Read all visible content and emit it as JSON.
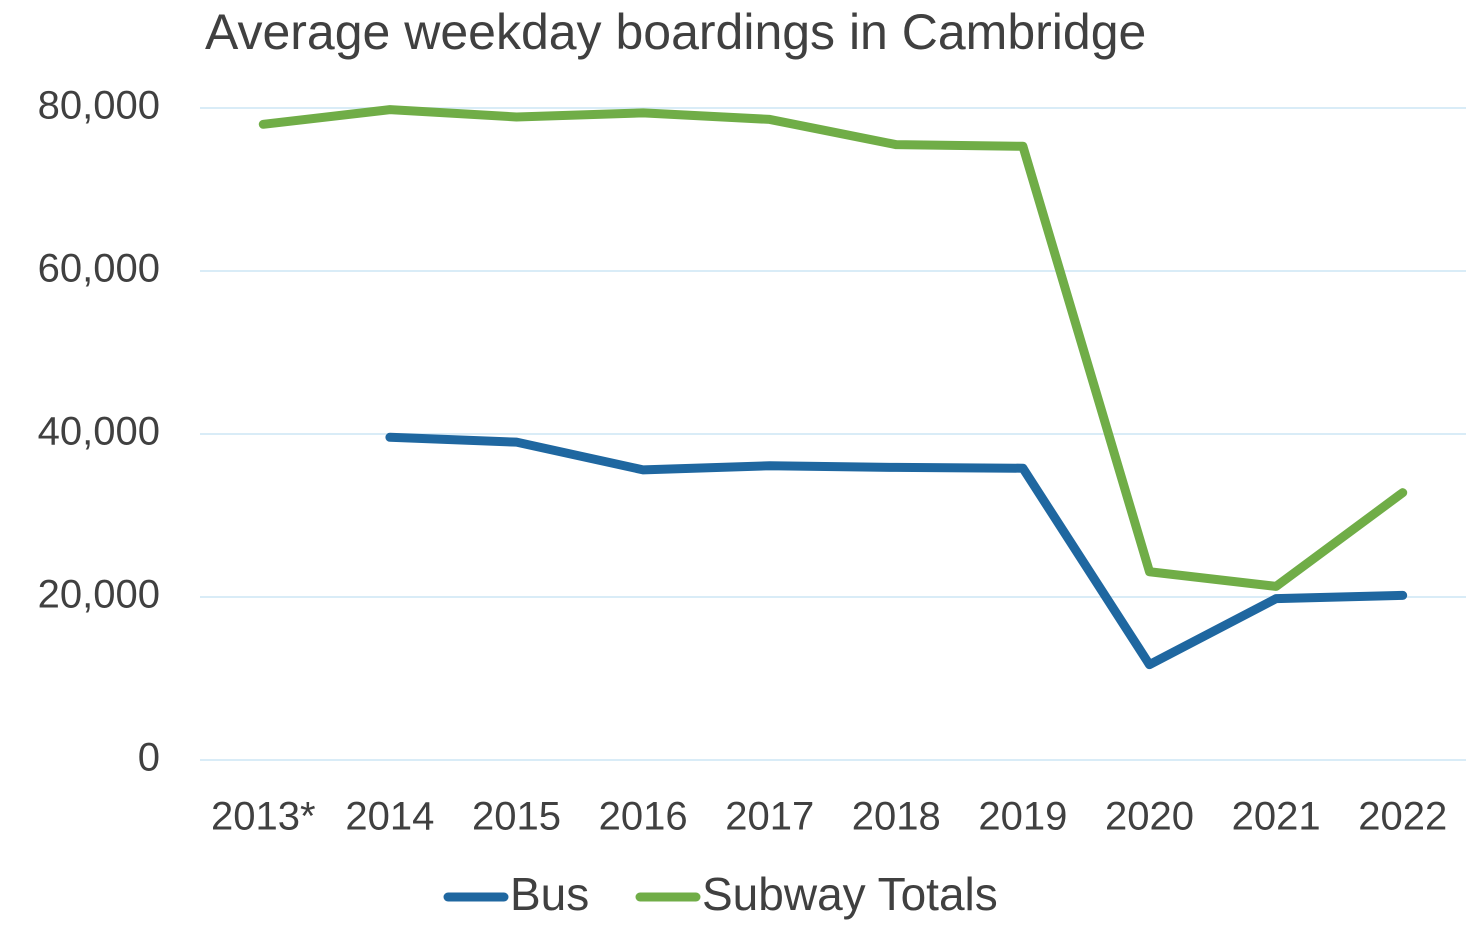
{
  "chart_data": {
    "type": "line",
    "title": "Average weekday boardings in Cambridge",
    "categories": [
      "2013*",
      "2014",
      "2015",
      "2016",
      "2017",
      "2018",
      "2019",
      "2020",
      "2021",
      "2022"
    ],
    "series": [
      {
        "name": "Bus",
        "color": "#1f67a0",
        "values": [
          null,
          39600,
          39000,
          35600,
          36100,
          35900,
          35800,
          11700,
          19800,
          20200
        ]
      },
      {
        "name": "Subway Totals",
        "color": "#70ad47",
        "values": [
          78000,
          79800,
          78900,
          79400,
          78600,
          75500,
          75300,
          23100,
          21300,
          32800
        ]
      }
    ],
    "ylim": [
      0,
      80000
    ],
    "yticks": [
      0,
      {
        "value": 20000,
        "label": "20,000"
      },
      {
        "value": 40000,
        "label": "40,000"
      },
      {
        "value": 60000,
        "label": "60,000"
      },
      {
        "value": 80000,
        "label": "80,000"
      }
    ],
    "grid": true,
    "legend": "bottom"
  }
}
